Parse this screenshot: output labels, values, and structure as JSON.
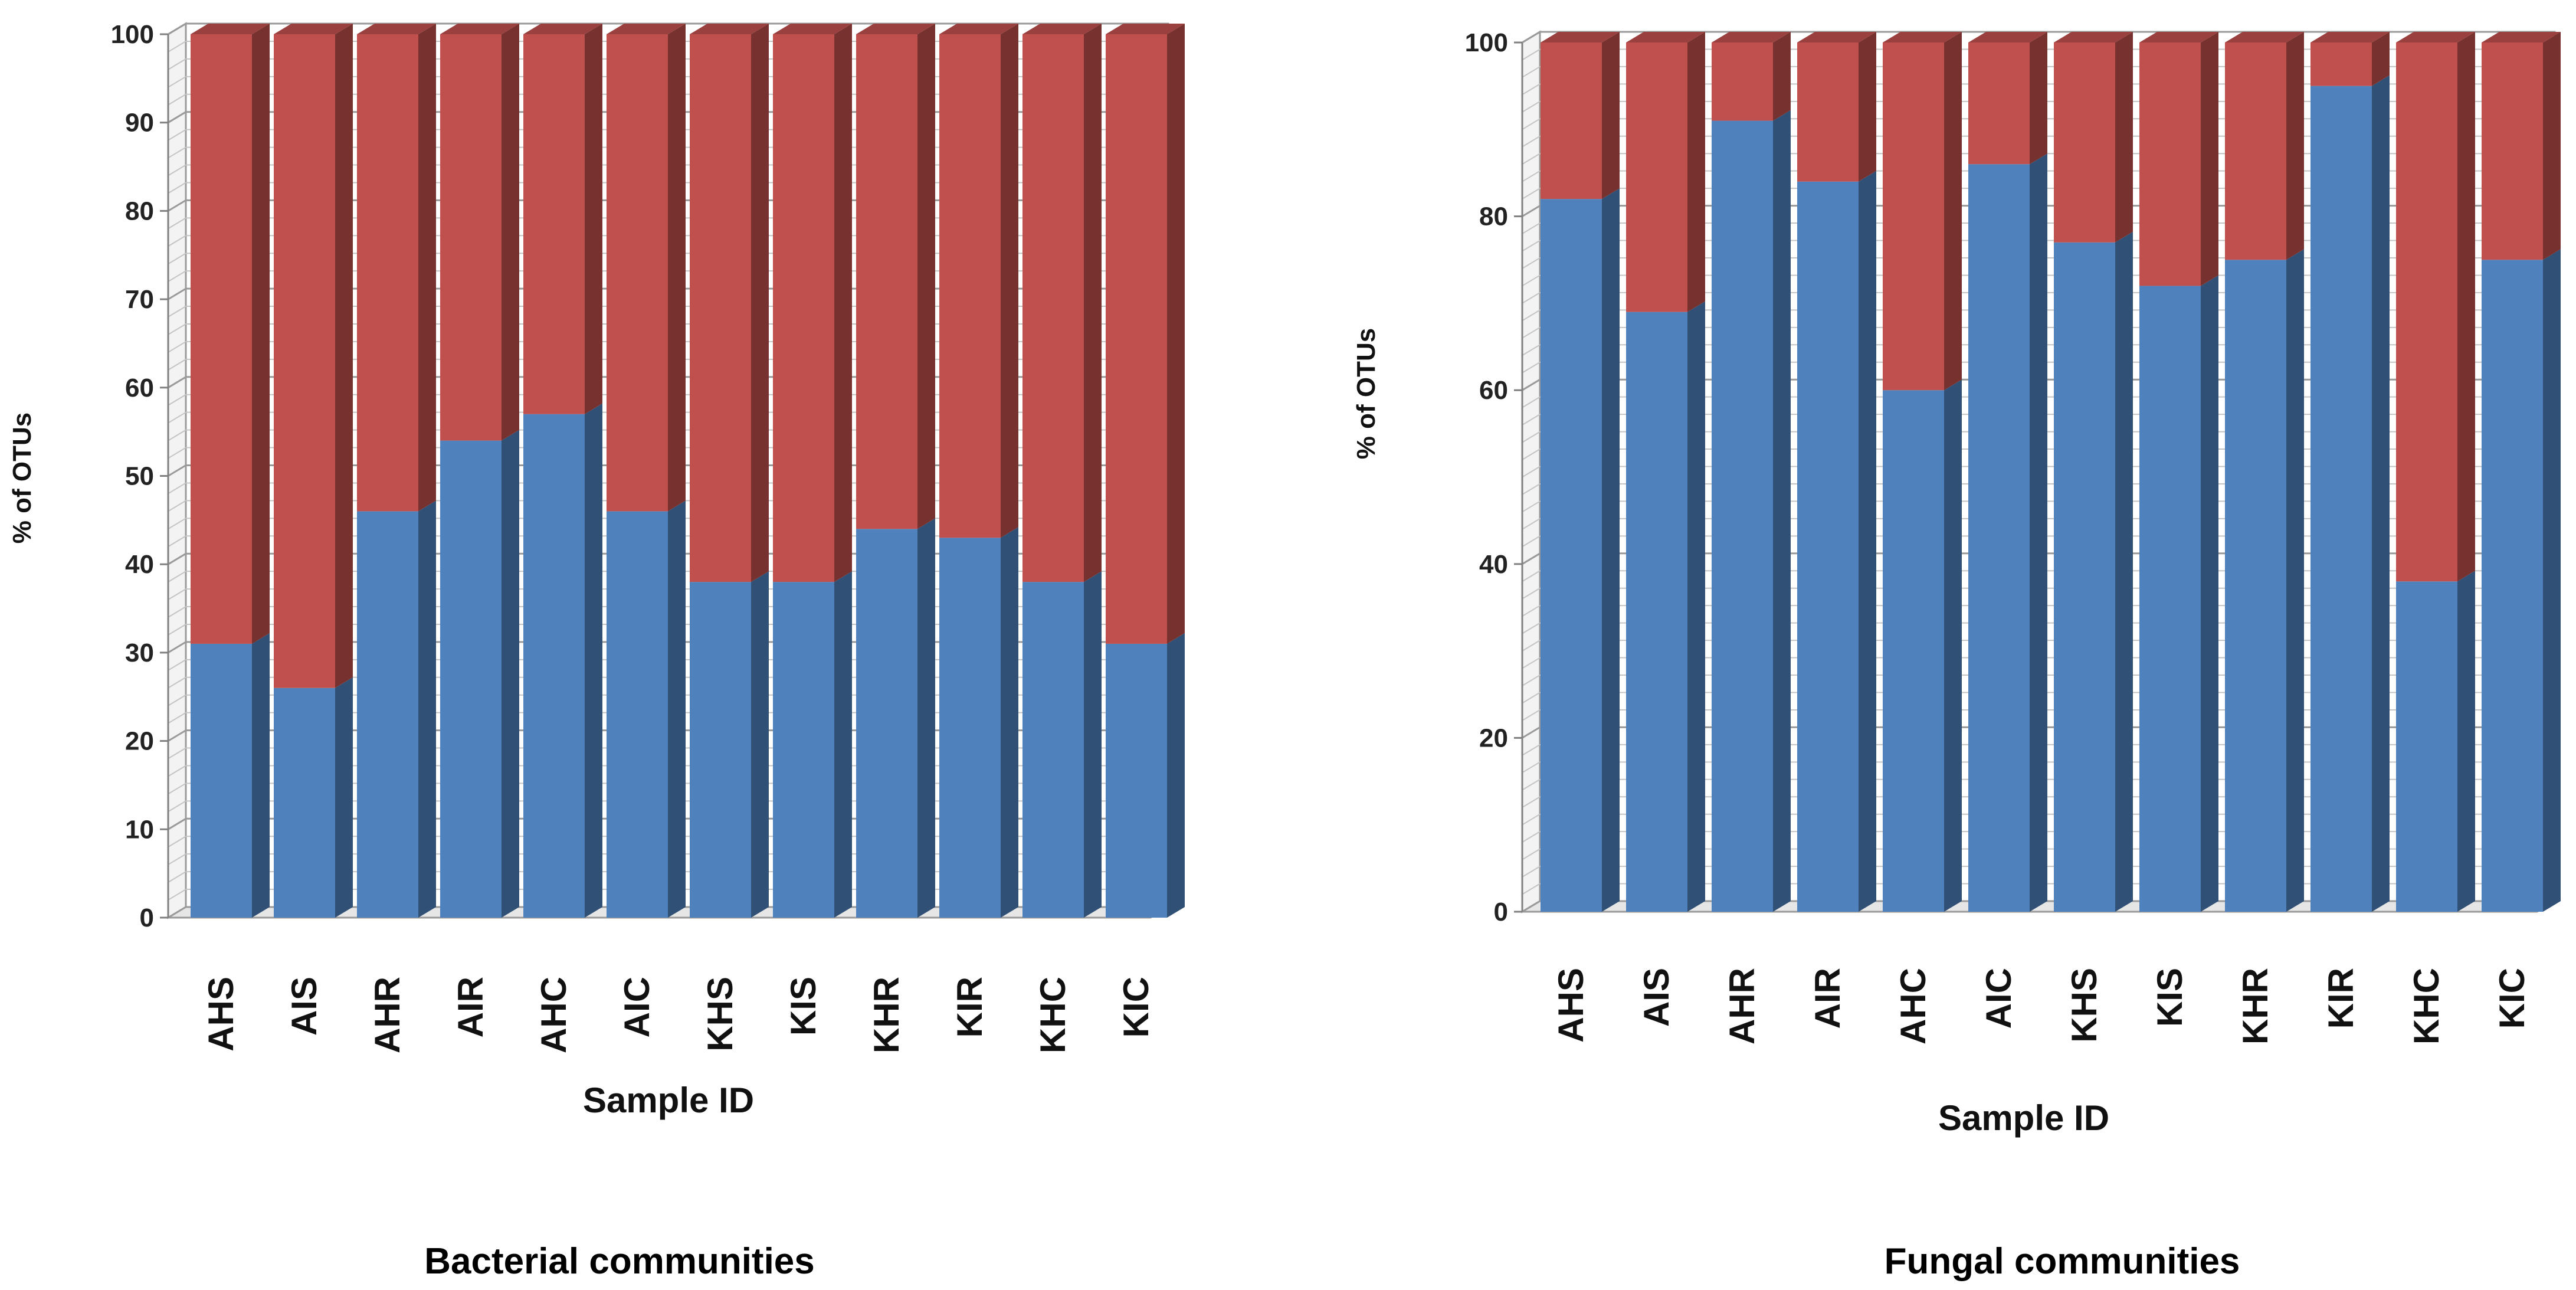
{
  "chart_data": [
    {
      "type": "bar",
      "stacked": true,
      "caption": "Bacterial communities",
      "xlabel": "Sample ID",
      "ylabel": "% of OTUs",
      "ylim": [
        0,
        100
      ],
      "yticks": [
        0,
        10,
        20,
        30,
        40,
        50,
        60,
        70,
        80,
        90,
        100
      ],
      "grid": true,
      "legend": "none",
      "categories": [
        "AHS",
        "AIS",
        "AHR",
        "AIR",
        "AHC",
        "AIC",
        "KHS",
        "KIS",
        "KHR",
        "KIR",
        "KHC",
        "KIC"
      ],
      "series": [
        {
          "color": "#4f81bd",
          "values": [
            31,
            26,
            46,
            54,
            57,
            46,
            38,
            38,
            44,
            43,
            38,
            31
          ]
        },
        {
          "color": "#c0504d",
          "values": [
            69,
            74,
            54,
            46,
            43,
            54,
            62,
            62,
            56,
            57,
            62,
            69
          ]
        }
      ]
    },
    {
      "type": "bar",
      "stacked": true,
      "caption": "Fungal communities",
      "xlabel": "Sample ID",
      "ylabel": "% of OTUs",
      "ylim": [
        0,
        100
      ],
      "yticks": [
        0,
        20,
        40,
        60,
        80,
        100
      ],
      "grid": true,
      "legend": "none",
      "categories": [
        "AHS",
        "AIS",
        "AHR",
        "AIR",
        "AHC",
        "AIC",
        "KHS",
        "KIS",
        "KHR",
        "KIR",
        "KHC",
        "KIC"
      ],
      "series": [
        {
          "color": "#4f81bd",
          "values": [
            82,
            69,
            91,
            84,
            60,
            86,
            77,
            72,
            75,
            95,
            38,
            75
          ]
        },
        {
          "color": "#c0504d",
          "values": [
            18,
            31,
            9,
            16,
            40,
            14,
            23,
            28,
            25,
            5,
            62,
            25
          ]
        }
      ]
    }
  ]
}
